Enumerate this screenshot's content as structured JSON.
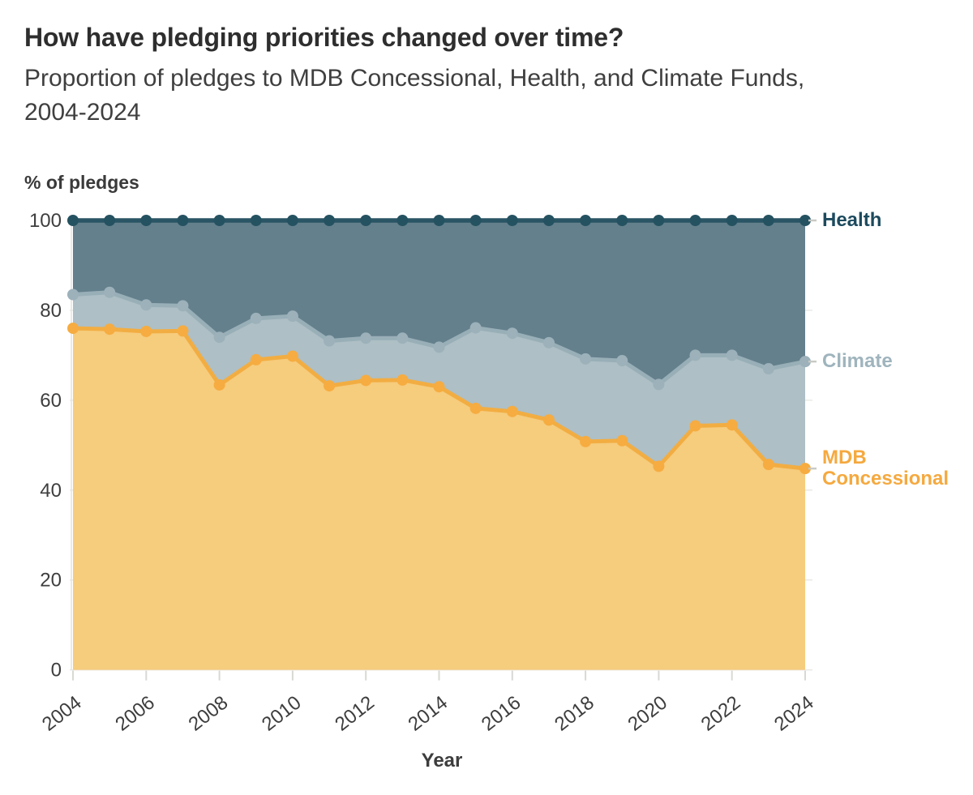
{
  "chart_data": {
    "type": "area",
    "stacked": true,
    "title": "How have pledging priorities changed over time?",
    "subtitle": "Proportion of pledges to MDB Concessional, Health, and Climate Funds, 2004-2024",
    "xlabel": "Year",
    "ylabel": "% of pledges",
    "ylim": [
      0,
      100
    ],
    "grid": "horizontal",
    "legend_position": "right-of-line-ends",
    "x": [
      2004,
      2005,
      2006,
      2007,
      2008,
      2009,
      2010,
      2011,
      2012,
      2013,
      2014,
      2015,
      2016,
      2017,
      2018,
      2019,
      2020,
      2021,
      2022,
      2023,
      2024
    ],
    "x_ticks": [
      2004,
      2006,
      2008,
      2010,
      2012,
      2014,
      2016,
      2018,
      2020,
      2022,
      2024
    ],
    "y_ticks": [
      0,
      20,
      40,
      60,
      80,
      100
    ],
    "series": [
      {
        "name": "MDB Concessional",
        "values": [
          76.0,
          75.8,
          75.3,
          75.4,
          63.4,
          69.0,
          69.8,
          63.2,
          64.4,
          64.5,
          63.0,
          58.2,
          57.5,
          55.6,
          50.8,
          51.0,
          45.3,
          54.3,
          54.5,
          45.7,
          44.8
        ],
        "fill": "#f6cc7d",
        "line": "#f2ad42",
        "point": "#f6ac40",
        "label_color": "#f5a93f"
      },
      {
        "name": "Climate",
        "values": [
          7.5,
          8.2,
          5.9,
          5.6,
          10.6,
          9.2,
          8.9,
          10.0,
          9.4,
          9.3,
          8.8,
          17.9,
          17.4,
          17.2,
          18.4,
          17.8,
          18.2,
          15.7,
          15.5,
          21.3,
          23.8
        ],
        "fill": "#aebfc5",
        "line": "#99afb8",
        "point": "#9cb1ba",
        "label_color": "#9fb4bd"
      },
      {
        "name": "Health",
        "values": [
          16.5,
          16.0,
          18.8,
          19.0,
          26.0,
          21.8,
          21.3,
          26.8,
          26.2,
          26.2,
          28.2,
          23.9,
          25.1,
          27.2,
          30.8,
          31.2,
          36.5,
          30.0,
          30.0,
          33.0,
          31.4
        ],
        "fill": "#64808c",
        "line": "#2a5565",
        "point": "#255261",
        "label_color": "#1d4a5e"
      }
    ],
    "axis_colors": {
      "tick_label": "#3e3e3e",
      "gridline": "#e9e9e6",
      "tick_mark": "#d8d8d4",
      "legend_dash": "#c9c9c5"
    }
  }
}
